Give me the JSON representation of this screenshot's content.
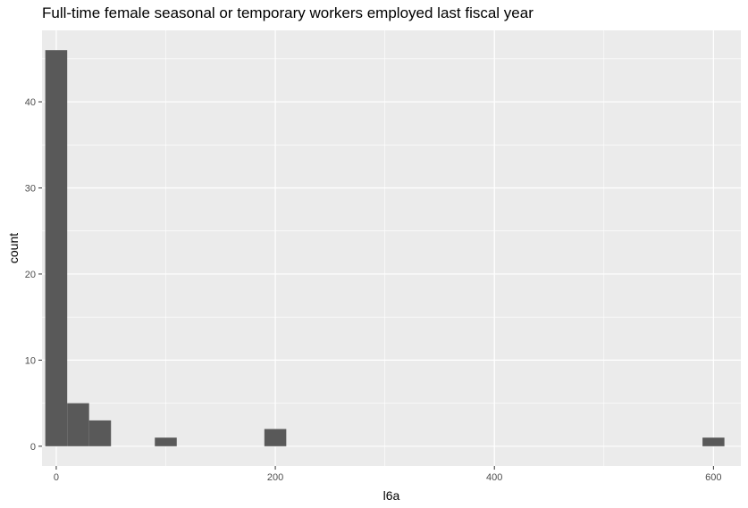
{
  "chart_data": {
    "type": "bar",
    "title": "Full-time female seasonal or temporary workers employed last fiscal year",
    "xlabel": "l6a",
    "ylabel": "count",
    "xlim": [
      -13,
      625
    ],
    "ylim": [
      -2.3,
      48.3
    ],
    "x_ticks": [
      0,
      200,
      400,
      600
    ],
    "y_ticks": [
      0,
      10,
      20,
      30,
      40
    ],
    "bin_width": 20,
    "bars": [
      {
        "x0": -10,
        "x1": 10,
        "count": 46
      },
      {
        "x0": 10,
        "x1": 30,
        "count": 5
      },
      {
        "x0": 30,
        "x1": 50,
        "count": 3
      },
      {
        "x0": 90,
        "x1": 110,
        "count": 1
      },
      {
        "x0": 190,
        "x1": 210,
        "count": 2
      },
      {
        "x0": 590,
        "x1": 610,
        "count": 1
      }
    ],
    "grid": true,
    "colors": {
      "panel": "#ebebeb",
      "grid": "#ffffff",
      "bar": "#595959"
    }
  }
}
